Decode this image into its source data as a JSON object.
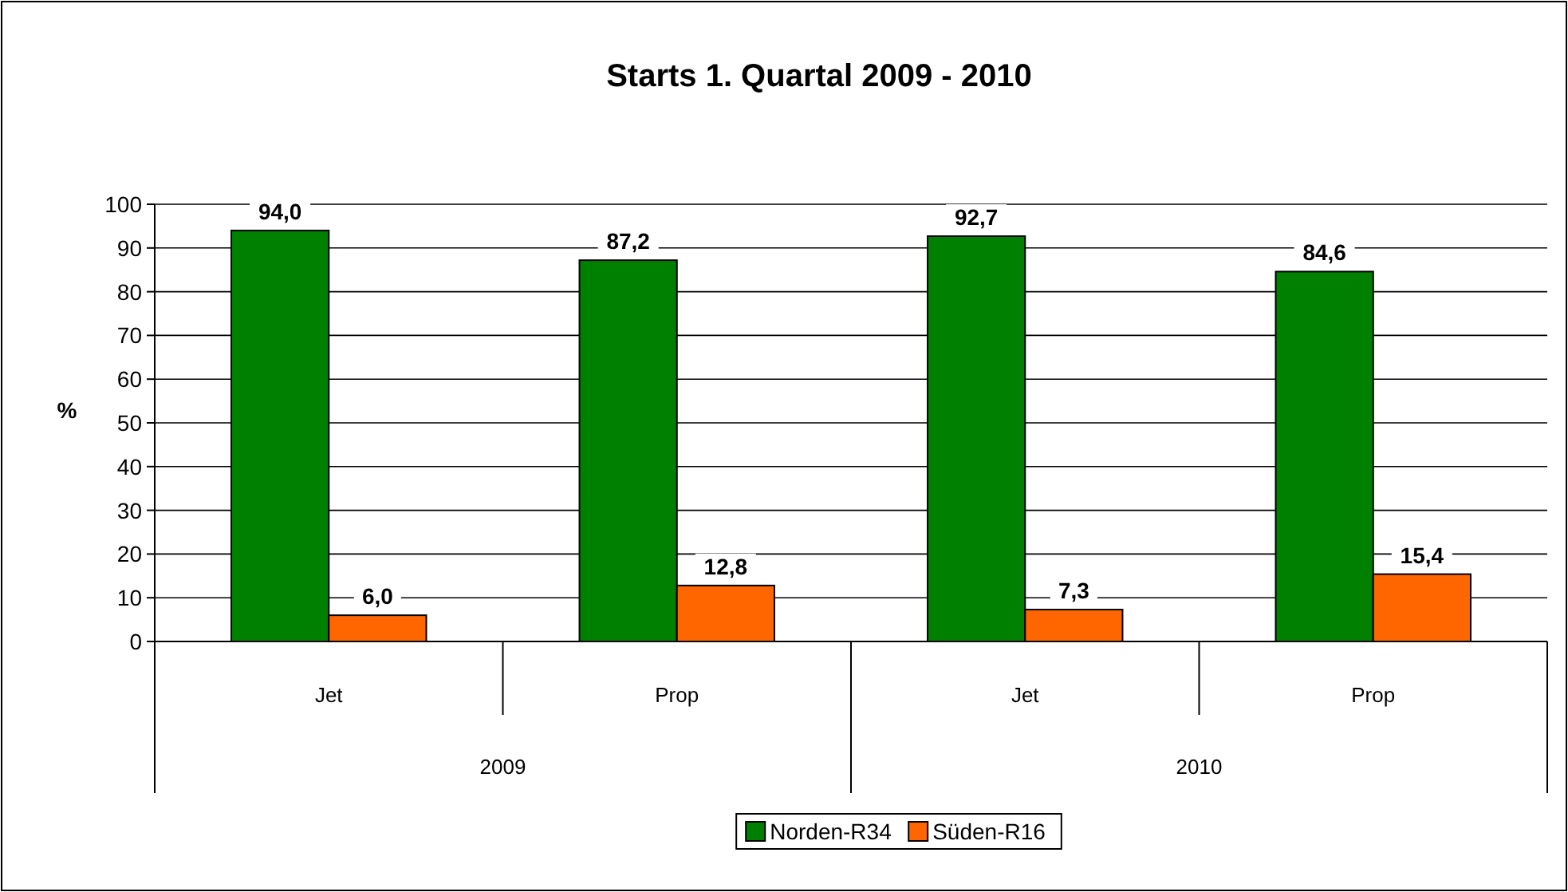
{
  "chart_data": {
    "type": "bar",
    "title": "Starts 1. Quartal 2009 - 2010",
    "ylabel": "%",
    "categories": [
      "Jet",
      "Prop",
      "Jet",
      "Prop"
    ],
    "series": [
      {
        "name": "Norden-R34",
        "color": "#008000",
        "values": [
          94.0,
          87.2,
          92.7,
          84.6
        ],
        "value_labels": [
          "94,0",
          "87,2",
          "92,7",
          "84,6"
        ]
      },
      {
        "name": "Süden-R16",
        "color": "#ff6600",
        "values": [
          6.0,
          12.8,
          7.3,
          15.4
        ],
        "value_labels": [
          "6,0",
          "12,8",
          "7,3",
          "15,4"
        ]
      }
    ],
    "annotations": [
      "2009",
      "2010"
    ],
    "ylim": [
      0,
      100
    ],
    "yticks": [
      0,
      10,
      20,
      30,
      40,
      50,
      60,
      70,
      80,
      90,
      100
    ],
    "grid": "y",
    "legend": "bottom"
  }
}
